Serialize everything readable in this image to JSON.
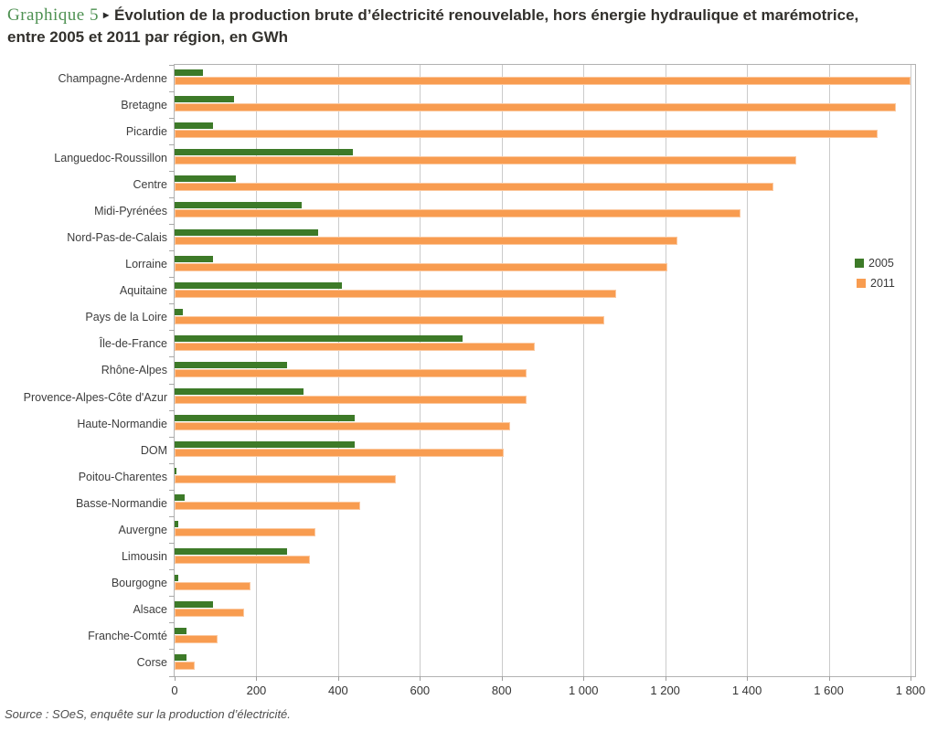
{
  "title": {
    "kicker": "Graphique 5",
    "arrow": "▸",
    "line1": "Évolution de la production brute d’électricité renouvelable, hors énergie hydraulique et marémotrice,",
    "line2": "entre 2005 et 2011 par région, en GWh"
  },
  "source": "Source : SOeS, enquête sur la production d’électricité.",
  "colors": {
    "green_2005": "#3d7a28",
    "orange_2011": "#f89c50",
    "kicker_green": "#4e9152",
    "gridline": "#cbcbcb",
    "plot_border": "#b2b2b2"
  },
  "chart_data": {
    "type": "bar",
    "orientation": "horizontal",
    "title": "Évolution de la production brute d’électricité renouvelable, hors énergie hydraulique et marémotrice, entre 2005 et 2011 par région, en GWh",
    "unit": "GWh",
    "xlim": [
      0,
      1800
    ],
    "grid": true,
    "legend_position": "right-middle",
    "x_tick_values": [
      0,
      200,
      400,
      600,
      800,
      1000,
      1200,
      1400,
      1600,
      1800
    ],
    "x_tick_labels": [
      "0",
      "200",
      "400",
      "600",
      "800",
      "1 000",
      "1 200",
      "1 400",
      "1 600",
      "1 800"
    ],
    "categories": [
      "Champagne-Ardenne",
      "Bretagne",
      "Picardie",
      "Languedoc-Roussillon",
      "Centre",
      "Midi-Pyrénées",
      "Nord-Pas-de-Calais",
      "Lorraine",
      "Aquitaine",
      "Pays de la Loire",
      "Île-de-France",
      "Rhône-Alpes",
      "Provence-Alpes-Côte d'Azur",
      "Haute-Normandie",
      "DOM",
      "Poitou-Charentes",
      "Basse-Normandie",
      "Auvergne",
      "Limousin",
      "Bourgogne",
      "Alsace",
      "Franche-Comté",
      "Corse"
    ],
    "series": [
      {
        "name": "2005",
        "color": "#3d7a28",
        "values": [
          70,
          145,
          95,
          435,
          150,
          310,
          350,
          95,
          410,
          20,
          705,
          275,
          315,
          440,
          440,
          5,
          25,
          10,
          275,
          10,
          95,
          30,
          30
        ]
      },
      {
        "name": "2011",
        "color": "#f89c50",
        "values": [
          1800,
          1765,
          1720,
          1520,
          1465,
          1385,
          1230,
          1205,
          1080,
          1050,
          880,
          860,
          860,
          820,
          805,
          540,
          455,
          345,
          330,
          185,
          170,
          105,
          50
        ]
      }
    ]
  }
}
